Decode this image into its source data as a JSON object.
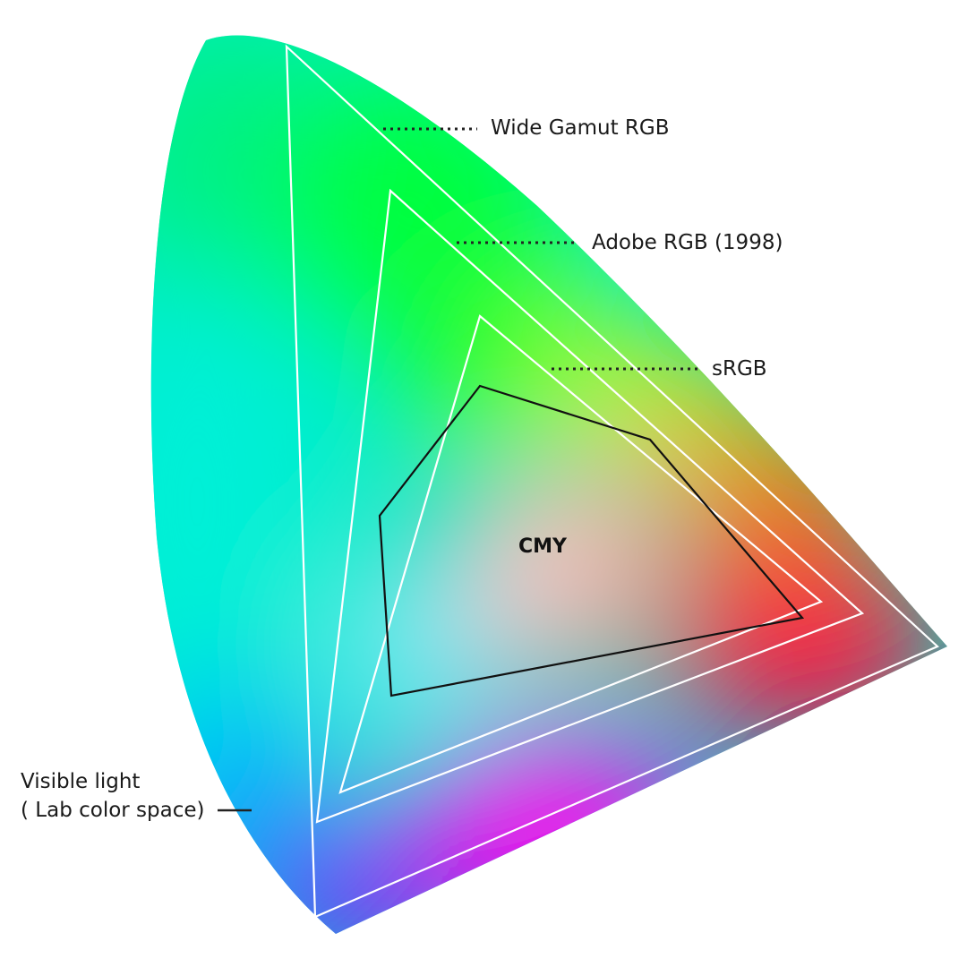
{
  "labels": {
    "wide_gamut": "Wide Gamut RGB",
    "adobe_rgb": "Adobe RGB (1998)",
    "srgb": "sRGB",
    "cmy": "CMY",
    "visible_line1": "Visible light",
    "visible_line2": "( Lab color space)"
  },
  "colors": {
    "gamut_outline": "#ffffff",
    "cmy_outline": "#111111",
    "leader": "#222222",
    "green": "#00ff40",
    "cyan": "#00f0d0",
    "blue": "#1a1aff",
    "violet": "#7a00ff",
    "magenta": "#ff00f0",
    "red": "#ff0040",
    "orange": "#ff9a00",
    "yellow": "#eeff00"
  }
}
